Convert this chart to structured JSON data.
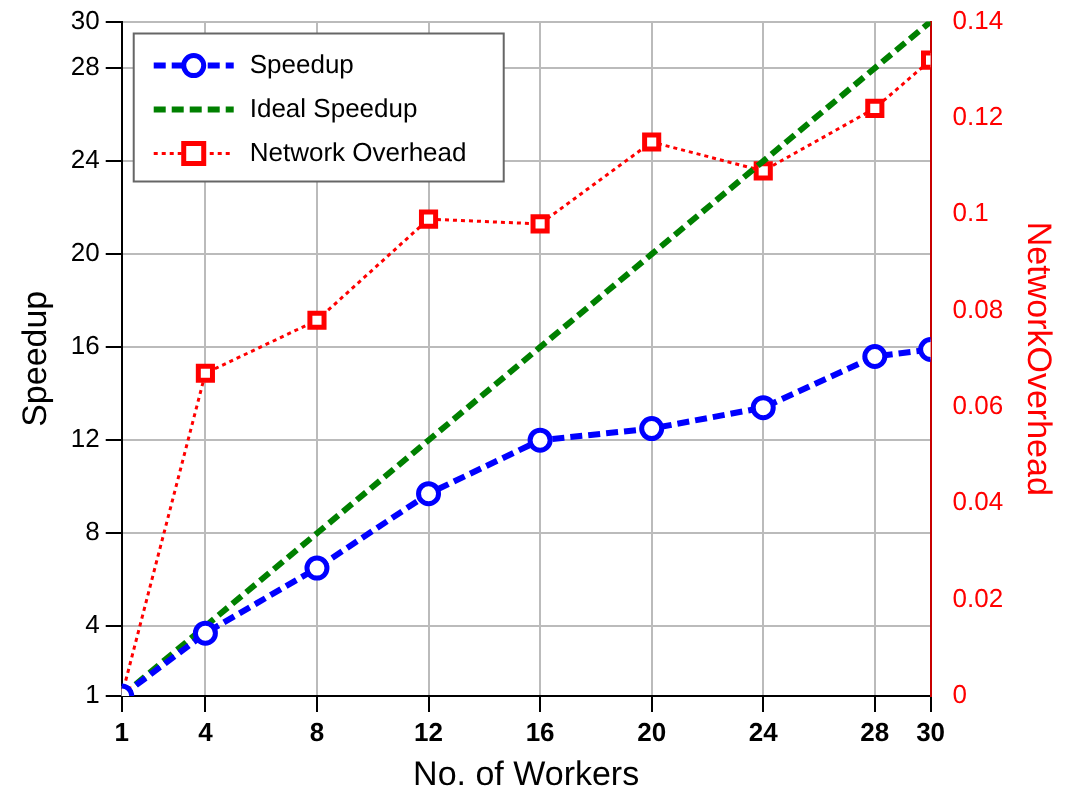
{
  "chart_data": {
    "type": "line",
    "xlabel": "No. of Workers",
    "ylabel": "Speedup",
    "y2label": "NetworkOverhead",
    "x": [
      1,
      4,
      8,
      12,
      16,
      20,
      24,
      28,
      30
    ],
    "series": [
      {
        "name": "Speedup",
        "color": "#0000ff",
        "marker": "circle",
        "line_style": "dashed",
        "values": [
          1,
          3.7,
          6.5,
          9.7,
          12.0,
          12.5,
          13.4,
          15.6,
          15.9
        ]
      },
      {
        "name": "Ideal Speedup",
        "color": "#008000",
        "marker": "none",
        "line_style": "dashed",
        "values": [
          1,
          4,
          8,
          12,
          16,
          20,
          24,
          28,
          30
        ]
      },
      {
        "name": "Network Overhead",
        "color": "#ff0000",
        "marker": "square",
        "line_style": "dotted",
        "axis": "y2",
        "values": [
          0,
          0.067,
          0.078,
          0.099,
          0.098,
          0.115,
          0.109,
          0.122,
          0.132
        ]
      }
    ],
    "xlim": [
      1,
      30
    ],
    "xticks": [
      1,
      4,
      8,
      12,
      16,
      20,
      24,
      28,
      30
    ],
    "ylim": [
      1,
      30
    ],
    "yticks": [
      1,
      4,
      8,
      12,
      16,
      20,
      24,
      28,
      30
    ],
    "y2lim": [
      0,
      0.14
    ],
    "y2ticks": [
      0,
      0.02,
      0.04,
      0.06,
      0.08,
      0.1,
      0.12,
      0.14
    ],
    "grid": true,
    "legend": "top left"
  }
}
